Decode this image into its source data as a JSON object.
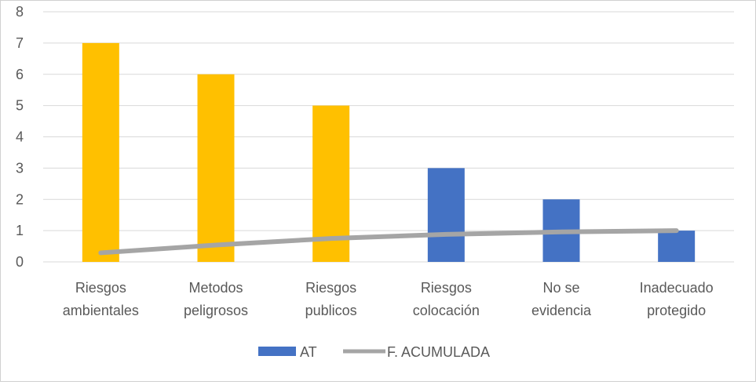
{
  "chart_data": {
    "type": "bar",
    "categories": [
      [
        "Riesgos",
        "ambientales"
      ],
      [
        "Metodos",
        "peligrosos"
      ],
      [
        "Riesgos",
        "publicos"
      ],
      [
        "Riesgos",
        "colocación"
      ],
      [
        "No se",
        "evidencia"
      ],
      [
        "Inadecuado",
        "protegido"
      ]
    ],
    "series": [
      {
        "name": "AT",
        "type": "bar",
        "values": [
          7,
          6,
          5,
          3,
          2,
          1
        ]
      },
      {
        "name": "F. ACUMULADA",
        "type": "line",
        "values": [
          0.29,
          0.54,
          0.75,
          0.88,
          0.96,
          1.0
        ]
      }
    ],
    "ylim": [
      0,
      8
    ],
    "yticks": [
      0,
      1,
      2,
      3,
      4,
      5,
      6,
      7,
      8
    ],
    "grid": true,
    "legend_position": "bottom",
    "highlight_count": 3,
    "colors": {
      "highlight": "#FFC000",
      "bar": "#4472C4",
      "line": "#A5A5A5",
      "grid": "#D9D9D9",
      "axis_text": "#595959"
    }
  }
}
